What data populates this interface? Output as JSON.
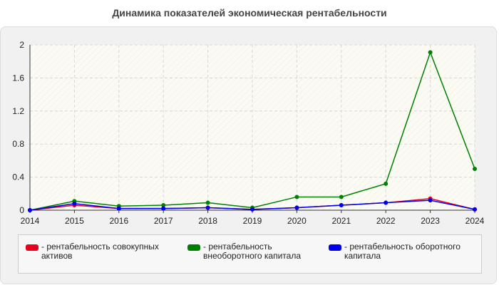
{
  "chart_data": {
    "type": "line",
    "title": "Динамика показателей экономическая рентабельности",
    "x": [
      "2014",
      "2015",
      "2016",
      "2017",
      "2018",
      "2019",
      "2020",
      "2021",
      "2022",
      "2023",
      "2024"
    ],
    "ylim": [
      0,
      2
    ],
    "yticks": [
      "0",
      "0.4",
      "0.8",
      "1.2",
      "1.6",
      "2"
    ],
    "grid": true,
    "legend_position": "bottom",
    "series": [
      {
        "name": "рентабельность совокупных активов",
        "color": "#e8001c",
        "values": [
          0,
          0.06,
          0.02,
          0.02,
          0.03,
          0.01,
          0.03,
          0.06,
          0.09,
          0.14,
          0.01
        ]
      },
      {
        "name": "рентабельность внеоборотного капитала",
        "color": "#008000",
        "values": [
          0,
          0.11,
          0.05,
          0.06,
          0.09,
          0.03,
          0.16,
          0.16,
          0.32,
          1.91,
          0.5
        ]
      },
      {
        "name": "рентабельность оборотного капитала",
        "color": "#0000ee",
        "values": [
          0,
          0.08,
          0.02,
          0.02,
          0.03,
          0.01,
          0.03,
          0.06,
          0.09,
          0.12,
          0.01
        ]
      }
    ]
  },
  "legend": {
    "items": [
      {
        "label": "- рентабельность совокупных активов",
        "color": "#e8001c"
      },
      {
        "label": "- рентабельность внеоборотного капитала",
        "color": "#008000"
      },
      {
        "label": "- рентабельность оборотного капитала",
        "color": "#0000ee"
      }
    ]
  }
}
